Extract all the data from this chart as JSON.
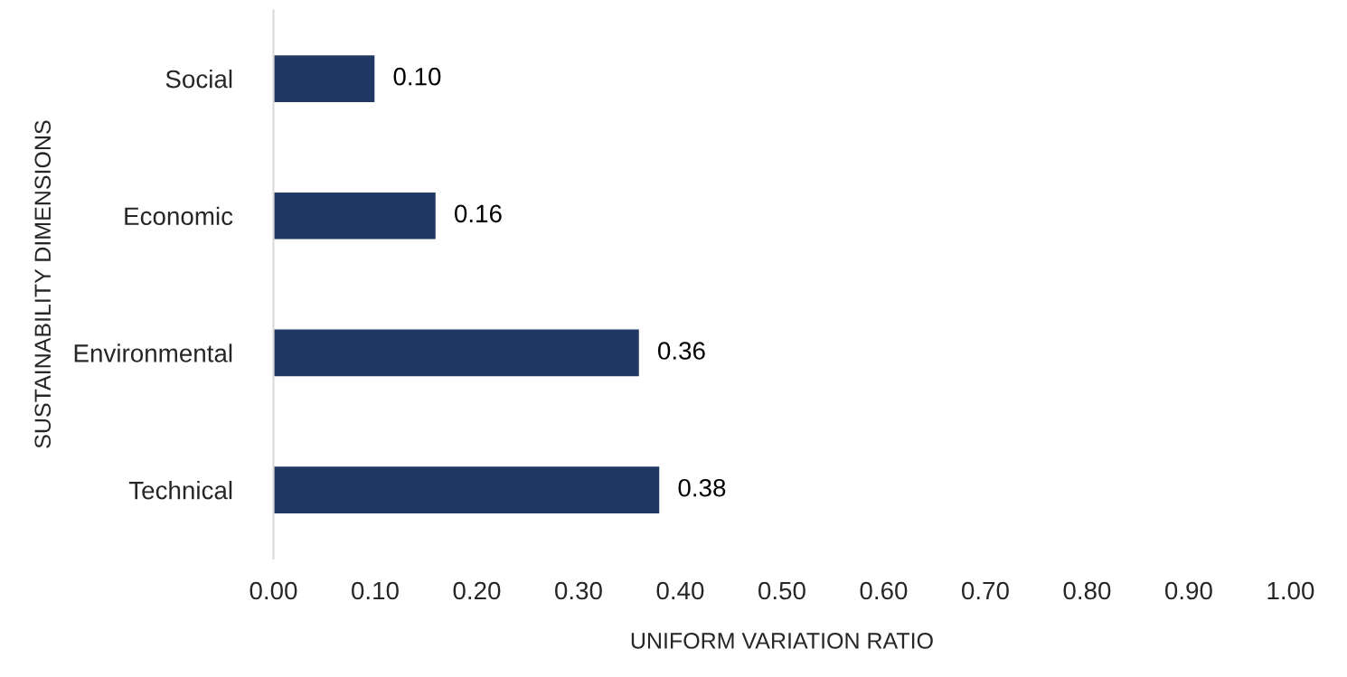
{
  "chart_data": {
    "type": "bar",
    "orientation": "horizontal",
    "xlabel": "UNIFORM VARIATION RATIO",
    "ylabel": "SUSTAINABILITY DIMENSIONS",
    "categories": [
      "Social",
      "Economic",
      "Environmental",
      "Technical"
    ],
    "values": [
      0.1,
      0.16,
      0.36,
      0.38
    ],
    "color": "#203864",
    "value_labels": [
      "0.10",
      "0.16",
      "0.36",
      "0.38"
    ],
    "xlim": [
      0,
      1.0
    ],
    "xticks": [
      {
        "value": 0,
        "label": "0.00"
      },
      {
        "value": 0.1,
        "label": "0.10"
      },
      {
        "value": 0.2,
        "label": "0.20"
      },
      {
        "value": 0.3,
        "label": "0.30"
      },
      {
        "value": 0.4,
        "label": "0.40"
      },
      {
        "value": 0.5,
        "label": "0.50"
      },
      {
        "value": 0.6,
        "label": "0.60"
      },
      {
        "value": 0.7,
        "label": "0.70"
      },
      {
        "value": 0.8,
        "label": "0.80"
      },
      {
        "value": 0.9,
        "label": "0.90"
      },
      {
        "value": 1.0,
        "label": "1.00"
      }
    ],
    "grid": false,
    "legend": false
  }
}
